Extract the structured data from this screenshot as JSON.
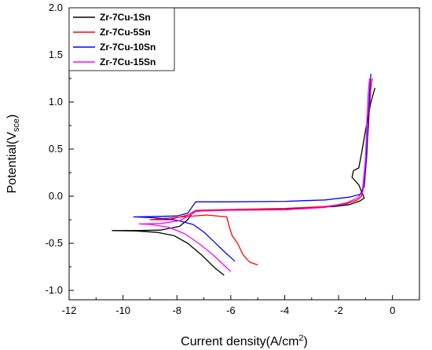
{
  "chart_data": {
    "type": "line",
    "title": "",
    "xlabel": "Current density(A/cm",
    "xlabel_sup": "2",
    "xlabel_end": ")",
    "ylabel": "Potential(V",
    "ylabel_sub": "sce",
    "ylabel_end": ")",
    "xlim": [
      -12,
      1
    ],
    "ylim": [
      -1.1,
      2.0
    ],
    "xticks": [
      -12,
      -10,
      -8,
      -6,
      -4,
      -2,
      0
    ],
    "yticks": [
      -1.0,
      -0.5,
      0.0,
      0.5,
      1.0,
      1.5,
      2.0
    ],
    "xtick_labels": [
      "-12",
      "-10",
      "-8",
      "-6",
      "-4",
      "-2",
      "0"
    ],
    "ytick_labels": [
      "-1.0",
      "-0.5",
      "0.0",
      "0.5",
      "1.0",
      "1.5",
      "2.0"
    ],
    "grid": false,
    "legend_position": "top-left",
    "series": [
      {
        "name": "Zr-7Cu-1Sn",
        "color": "#000000",
        "points": [
          [
            -6.25,
            -0.84
          ],
          [
            -6.6,
            -0.76
          ],
          [
            -7.1,
            -0.62
          ],
          [
            -7.6,
            -0.5
          ],
          [
            -8.1,
            -0.42
          ],
          [
            -8.7,
            -0.385
          ],
          [
            -9.5,
            -0.37
          ],
          [
            -10.4,
            -0.365
          ],
          [
            -9.5,
            -0.365
          ],
          [
            -8.6,
            -0.36
          ],
          [
            -7.9,
            -0.32
          ],
          [
            -7.6,
            -0.25
          ],
          [
            -7.45,
            -0.19
          ],
          [
            -7.3,
            -0.16
          ],
          [
            -6.5,
            -0.15
          ],
          [
            -5.0,
            -0.14
          ],
          [
            -3.5,
            -0.13
          ],
          [
            -2.2,
            -0.11
          ],
          [
            -1.6,
            -0.09
          ],
          [
            -1.2,
            -0.05
          ],
          [
            -1.05,
            -0.02
          ],
          [
            -1.25,
            0.12
          ],
          [
            -1.5,
            0.2
          ],
          [
            -1.45,
            0.27
          ],
          [
            -1.25,
            0.3
          ],
          [
            -1.15,
            0.45
          ],
          [
            -1.0,
            0.7
          ],
          [
            -0.9,
            0.85
          ],
          [
            -0.8,
            1.0
          ],
          [
            -0.7,
            1.1
          ],
          [
            -0.65,
            1.15
          ]
        ]
      },
      {
        "name": "Zr-7Cu-5Sn",
        "color": "#ff0000",
        "points": [
          [
            -5.0,
            -0.73
          ],
          [
            -5.3,
            -0.7
          ],
          [
            -5.55,
            -0.62
          ],
          [
            -5.75,
            -0.5
          ],
          [
            -5.95,
            -0.42
          ],
          [
            -6.05,
            -0.33
          ],
          [
            -6.15,
            -0.22
          ],
          [
            -6.9,
            -0.2
          ],
          [
            -7.8,
            -0.22
          ],
          [
            -8.6,
            -0.24
          ],
          [
            -9.0,
            -0.25
          ],
          [
            -8.3,
            -0.25
          ],
          [
            -7.6,
            -0.2
          ],
          [
            -7.3,
            -0.15
          ],
          [
            -5.8,
            -0.14
          ],
          [
            -4.0,
            -0.13
          ],
          [
            -2.5,
            -0.11
          ],
          [
            -1.7,
            -0.08
          ],
          [
            -1.3,
            -0.04
          ],
          [
            -1.15,
            0.0
          ],
          [
            -1.1,
            0.1
          ],
          [
            -1.0,
            0.4
          ],
          [
            -0.9,
            0.7
          ],
          [
            -0.85,
            0.95
          ],
          [
            -0.8,
            1.15
          ],
          [
            -0.75,
            1.25
          ]
        ]
      },
      {
        "name": "Zr-7Cu-10Sn",
        "color": "#0000ff",
        "points": [
          [
            -5.85,
            -0.69
          ],
          [
            -6.2,
            -0.6
          ],
          [
            -6.6,
            -0.49
          ],
          [
            -7.0,
            -0.38
          ],
          [
            -7.4,
            -0.3
          ],
          [
            -8.0,
            -0.255
          ],
          [
            -8.8,
            -0.23
          ],
          [
            -9.6,
            -0.22
          ],
          [
            -8.7,
            -0.215
          ],
          [
            -8.0,
            -0.21
          ],
          [
            -7.6,
            -0.18
          ],
          [
            -7.4,
            -0.1
          ],
          [
            -7.3,
            -0.06
          ],
          [
            -6.0,
            -0.06
          ],
          [
            -4.0,
            -0.055
          ],
          [
            -2.5,
            -0.04
          ],
          [
            -1.6,
            -0.01
          ],
          [
            -1.2,
            0.02
          ],
          [
            -1.05,
            0.1
          ],
          [
            -0.95,
            0.45
          ],
          [
            -0.9,
            0.8
          ],
          [
            -0.85,
            1.1
          ],
          [
            -0.8,
            1.3
          ]
        ]
      },
      {
        "name": "Zr-7Cu-15Sn",
        "color": "#ff00ff",
        "points": [
          [
            -6.0,
            -0.8
          ],
          [
            -6.3,
            -0.72
          ],
          [
            -6.75,
            -0.6
          ],
          [
            -7.2,
            -0.5
          ],
          [
            -7.7,
            -0.4
          ],
          [
            -8.3,
            -0.33
          ],
          [
            -9.0,
            -0.3
          ],
          [
            -9.4,
            -0.295
          ],
          [
            -8.6,
            -0.29
          ],
          [
            -7.9,
            -0.26
          ],
          [
            -7.5,
            -0.2
          ],
          [
            -7.3,
            -0.16
          ],
          [
            -6.0,
            -0.15
          ],
          [
            -4.0,
            -0.145
          ],
          [
            -2.5,
            -0.12
          ],
          [
            -1.7,
            -0.07
          ],
          [
            -1.3,
            -0.02
          ],
          [
            -1.1,
            0.05
          ],
          [
            -1.0,
            0.4
          ],
          [
            -0.95,
            0.8
          ],
          [
            -0.9,
            1.1
          ],
          [
            -0.85,
            1.25
          ]
        ]
      }
    ]
  }
}
